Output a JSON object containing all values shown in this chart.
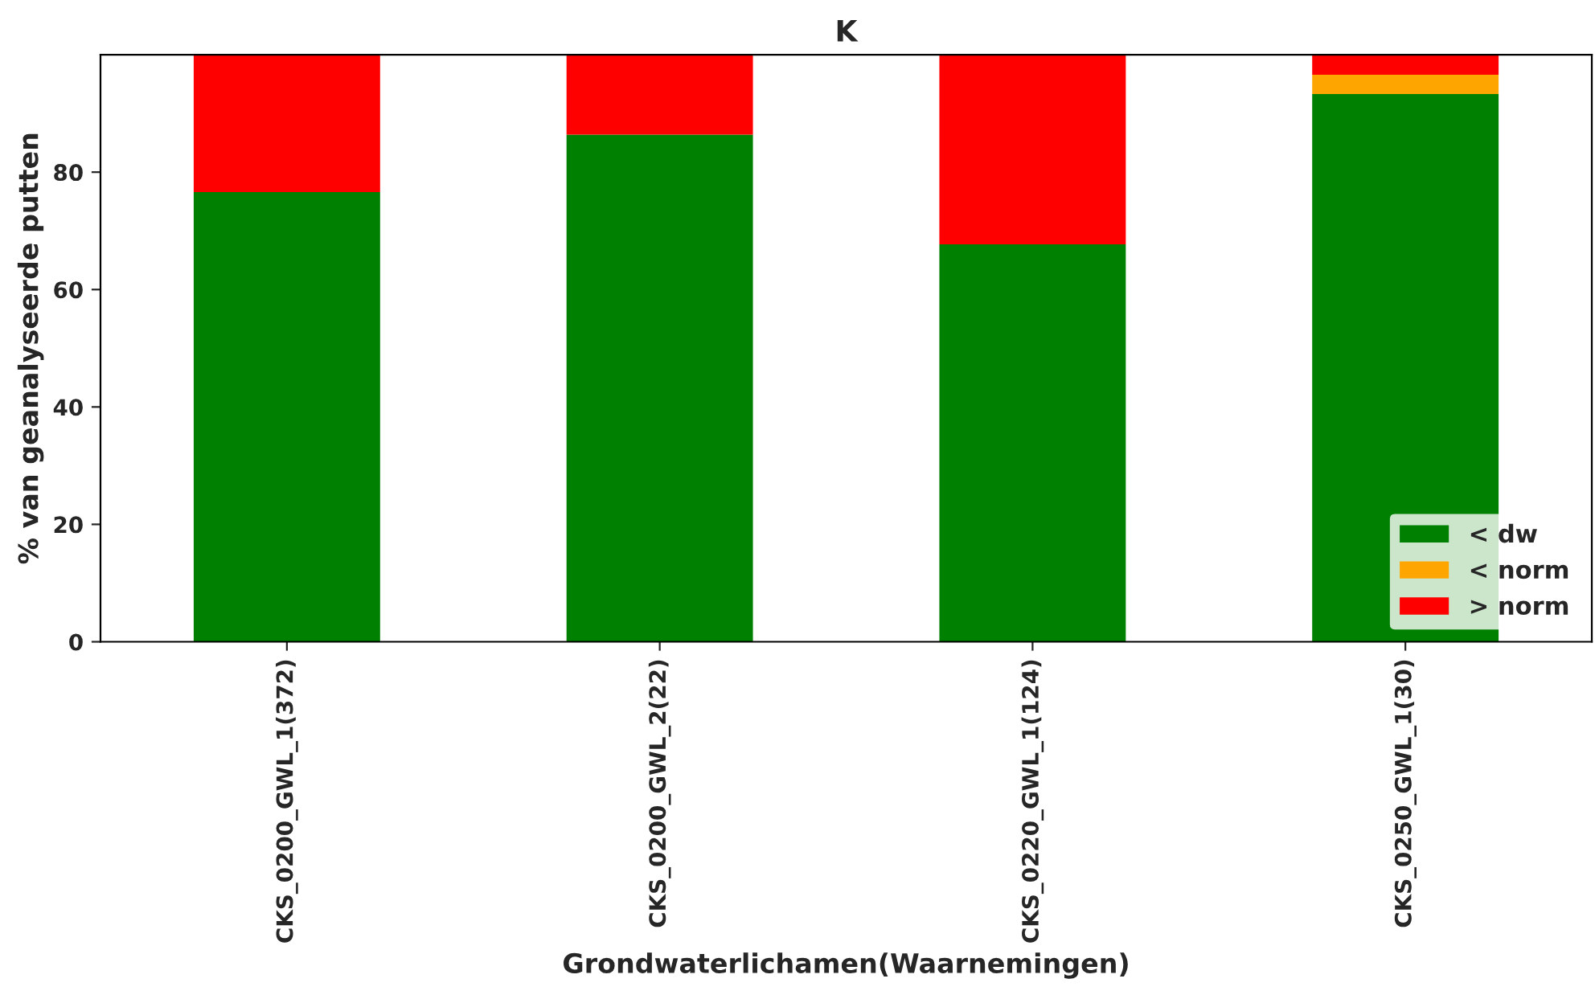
{
  "chart_data": {
    "type": "bar",
    "title": "K",
    "xlabel": "Grondwaterlichamen(Waarnemingen)",
    "ylabel": "% van geanalyseerde putten",
    "categories": [
      "CKS_0200_GWL_1(372)",
      "CKS_0200_GWL_2(22)",
      "CKS_0220_GWL_1(124)",
      "CKS_0250_GWL_1(30)"
    ],
    "stacked": true,
    "series": [
      {
        "name": "< dw",
        "color": "#008000",
        "values": [
          76.6,
          86.4,
          67.7,
          93.3
        ]
      },
      {
        "name": "< norm",
        "color": "#ffa500",
        "values": [
          0,
          0,
          0,
          3.3
        ]
      },
      {
        "name": "> norm",
        "color": "#ff0000",
        "values": [
          23.4,
          13.6,
          32.3,
          3.4
        ]
      }
    ],
    "ylim": [
      0,
      100
    ],
    "yticks": [
      0,
      20,
      40,
      60,
      80
    ],
    "grid": false,
    "legend": "bottom right"
  }
}
